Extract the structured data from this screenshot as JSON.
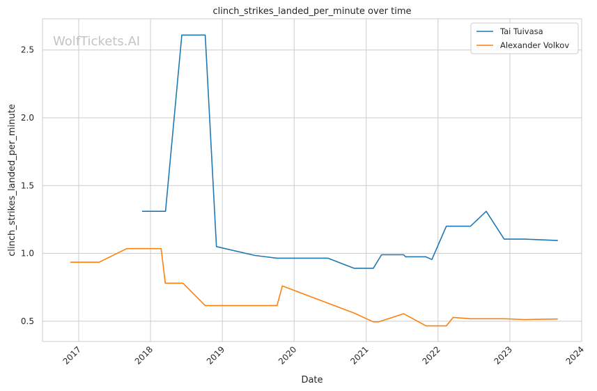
{
  "chart_data": {
    "type": "line",
    "title": "clinch_strikes_landed_per_minute over time",
    "xlabel": "Date",
    "ylabel": "clinch_strikes_landed_per_minute",
    "watermark": "WolfTickets.AI",
    "x_ticks": [
      "2017",
      "2018",
      "2019",
      "2020",
      "2021",
      "2022",
      "2023",
      "2024"
    ],
    "y_ticks": [
      "0.5",
      "1.0",
      "1.5",
      "2.0",
      "2.5"
    ],
    "xlim": [
      "2016-07-01",
      "2024-01-01"
    ],
    "ylim": [
      0.35,
      2.73
    ],
    "grid": true,
    "legend_position": "top-right",
    "series": [
      {
        "name": "Tai Tuivasa",
        "color": "#1f77b4",
        "points": [
          [
            "2017-11-19",
            1.31
          ],
          [
            "2018-03-18",
            1.31
          ],
          [
            "2018-06-09",
            2.61
          ],
          [
            "2018-10-06",
            2.61
          ],
          [
            "2018-12-02",
            1.05
          ],
          [
            "2019-06-15",
            0.985
          ],
          [
            "2019-10-05",
            0.965
          ],
          [
            "2020-06-20",
            0.965
          ],
          [
            "2020-10-31",
            0.89
          ],
          [
            "2021-02-06",
            0.89
          ],
          [
            "2021-03-20",
            0.99
          ],
          [
            "2021-07-10",
            0.99
          ],
          [
            "2021-07-20",
            0.975
          ],
          [
            "2021-10-30",
            0.975
          ],
          [
            "2021-12-01",
            0.955
          ],
          [
            "2022-02-12",
            1.2
          ],
          [
            "2022-06-15",
            1.2
          ],
          [
            "2022-09-03",
            1.31
          ],
          [
            "2022-12-03",
            1.105
          ],
          [
            "2023-03-18",
            1.105
          ],
          [
            "2023-09-02",
            1.095
          ]
        ]
      },
      {
        "name": "Alexander Volkov",
        "color": "#ff7f0e",
        "points": [
          [
            "2016-11-19",
            0.935
          ],
          [
            "2017-04-15",
            0.935
          ],
          [
            "2017-09-02",
            1.035
          ],
          [
            "2018-02-24",
            1.035
          ],
          [
            "2018-03-17",
            0.78
          ],
          [
            "2018-06-15",
            0.78
          ],
          [
            "2018-10-06",
            0.615
          ],
          [
            "2019-10-06",
            0.615
          ],
          [
            "2019-11-02",
            0.76
          ],
          [
            "2020-10-31",
            0.56
          ],
          [
            "2021-02-06",
            0.495
          ],
          [
            "2021-03-06",
            0.495
          ],
          [
            "2021-07-10",
            0.555
          ],
          [
            "2021-11-01",
            0.465
          ],
          [
            "2022-02-12",
            0.465
          ],
          [
            "2022-03-19",
            0.528
          ],
          [
            "2022-06-15",
            0.518
          ],
          [
            "2022-12-03",
            0.518
          ],
          [
            "2023-03-18",
            0.512
          ],
          [
            "2023-09-02",
            0.516
          ]
        ]
      }
    ]
  }
}
